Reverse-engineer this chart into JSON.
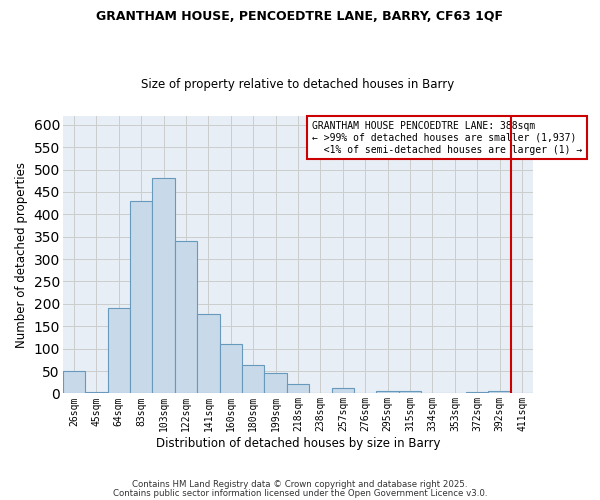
{
  "title": "GRANTHAM HOUSE, PENCOEDTRE LANE, BARRY, CF63 1QF",
  "subtitle": "Size of property relative to detached houses in Barry",
  "xlabel": "Distribution of detached houses by size in Barry",
  "ylabel": "Number of detached properties",
  "bin_labels": [
    "26sqm",
    "45sqm",
    "64sqm",
    "83sqm",
    "103sqm",
    "122sqm",
    "141sqm",
    "160sqm",
    "180sqm",
    "199sqm",
    "218sqm",
    "238sqm",
    "257sqm",
    "276sqm",
    "295sqm",
    "315sqm",
    "334sqm",
    "353sqm",
    "372sqm",
    "392sqm",
    "411sqm"
  ],
  "bar_heights": [
    50,
    3,
    190,
    430,
    480,
    340,
    178,
    110,
    63,
    45,
    22,
    0,
    11,
    0,
    5,
    5,
    2,
    0,
    3,
    5,
    0
  ],
  "bar_color": "#c8daea",
  "bar_edge_color": "#6699bb",
  "grid_color": "#cccccc",
  "bg_color": "#e8eef5",
  "vline_color": "#cc0000",
  "vline_pos": 19.5,
  "annotation_line1": "GRANTHAM HOUSE PENCOEDTRE LANE: 388sqm",
  "annotation_line2": "← >99% of detached houses are smaller (1,937)",
  "annotation_line3": "  <1% of semi-detached houses are larger (1) →",
  "annotation_box_color": "#cc0000",
  "footer_line1": "Contains HM Land Registry data © Crown copyright and database right 2025.",
  "footer_line2": "Contains public sector information licensed under the Open Government Licence v3.0.",
  "ylim": [
    0,
    620
  ],
  "yticks": [
    0,
    50,
    100,
    150,
    200,
    250,
    300,
    350,
    400,
    450,
    500,
    550,
    600
  ]
}
